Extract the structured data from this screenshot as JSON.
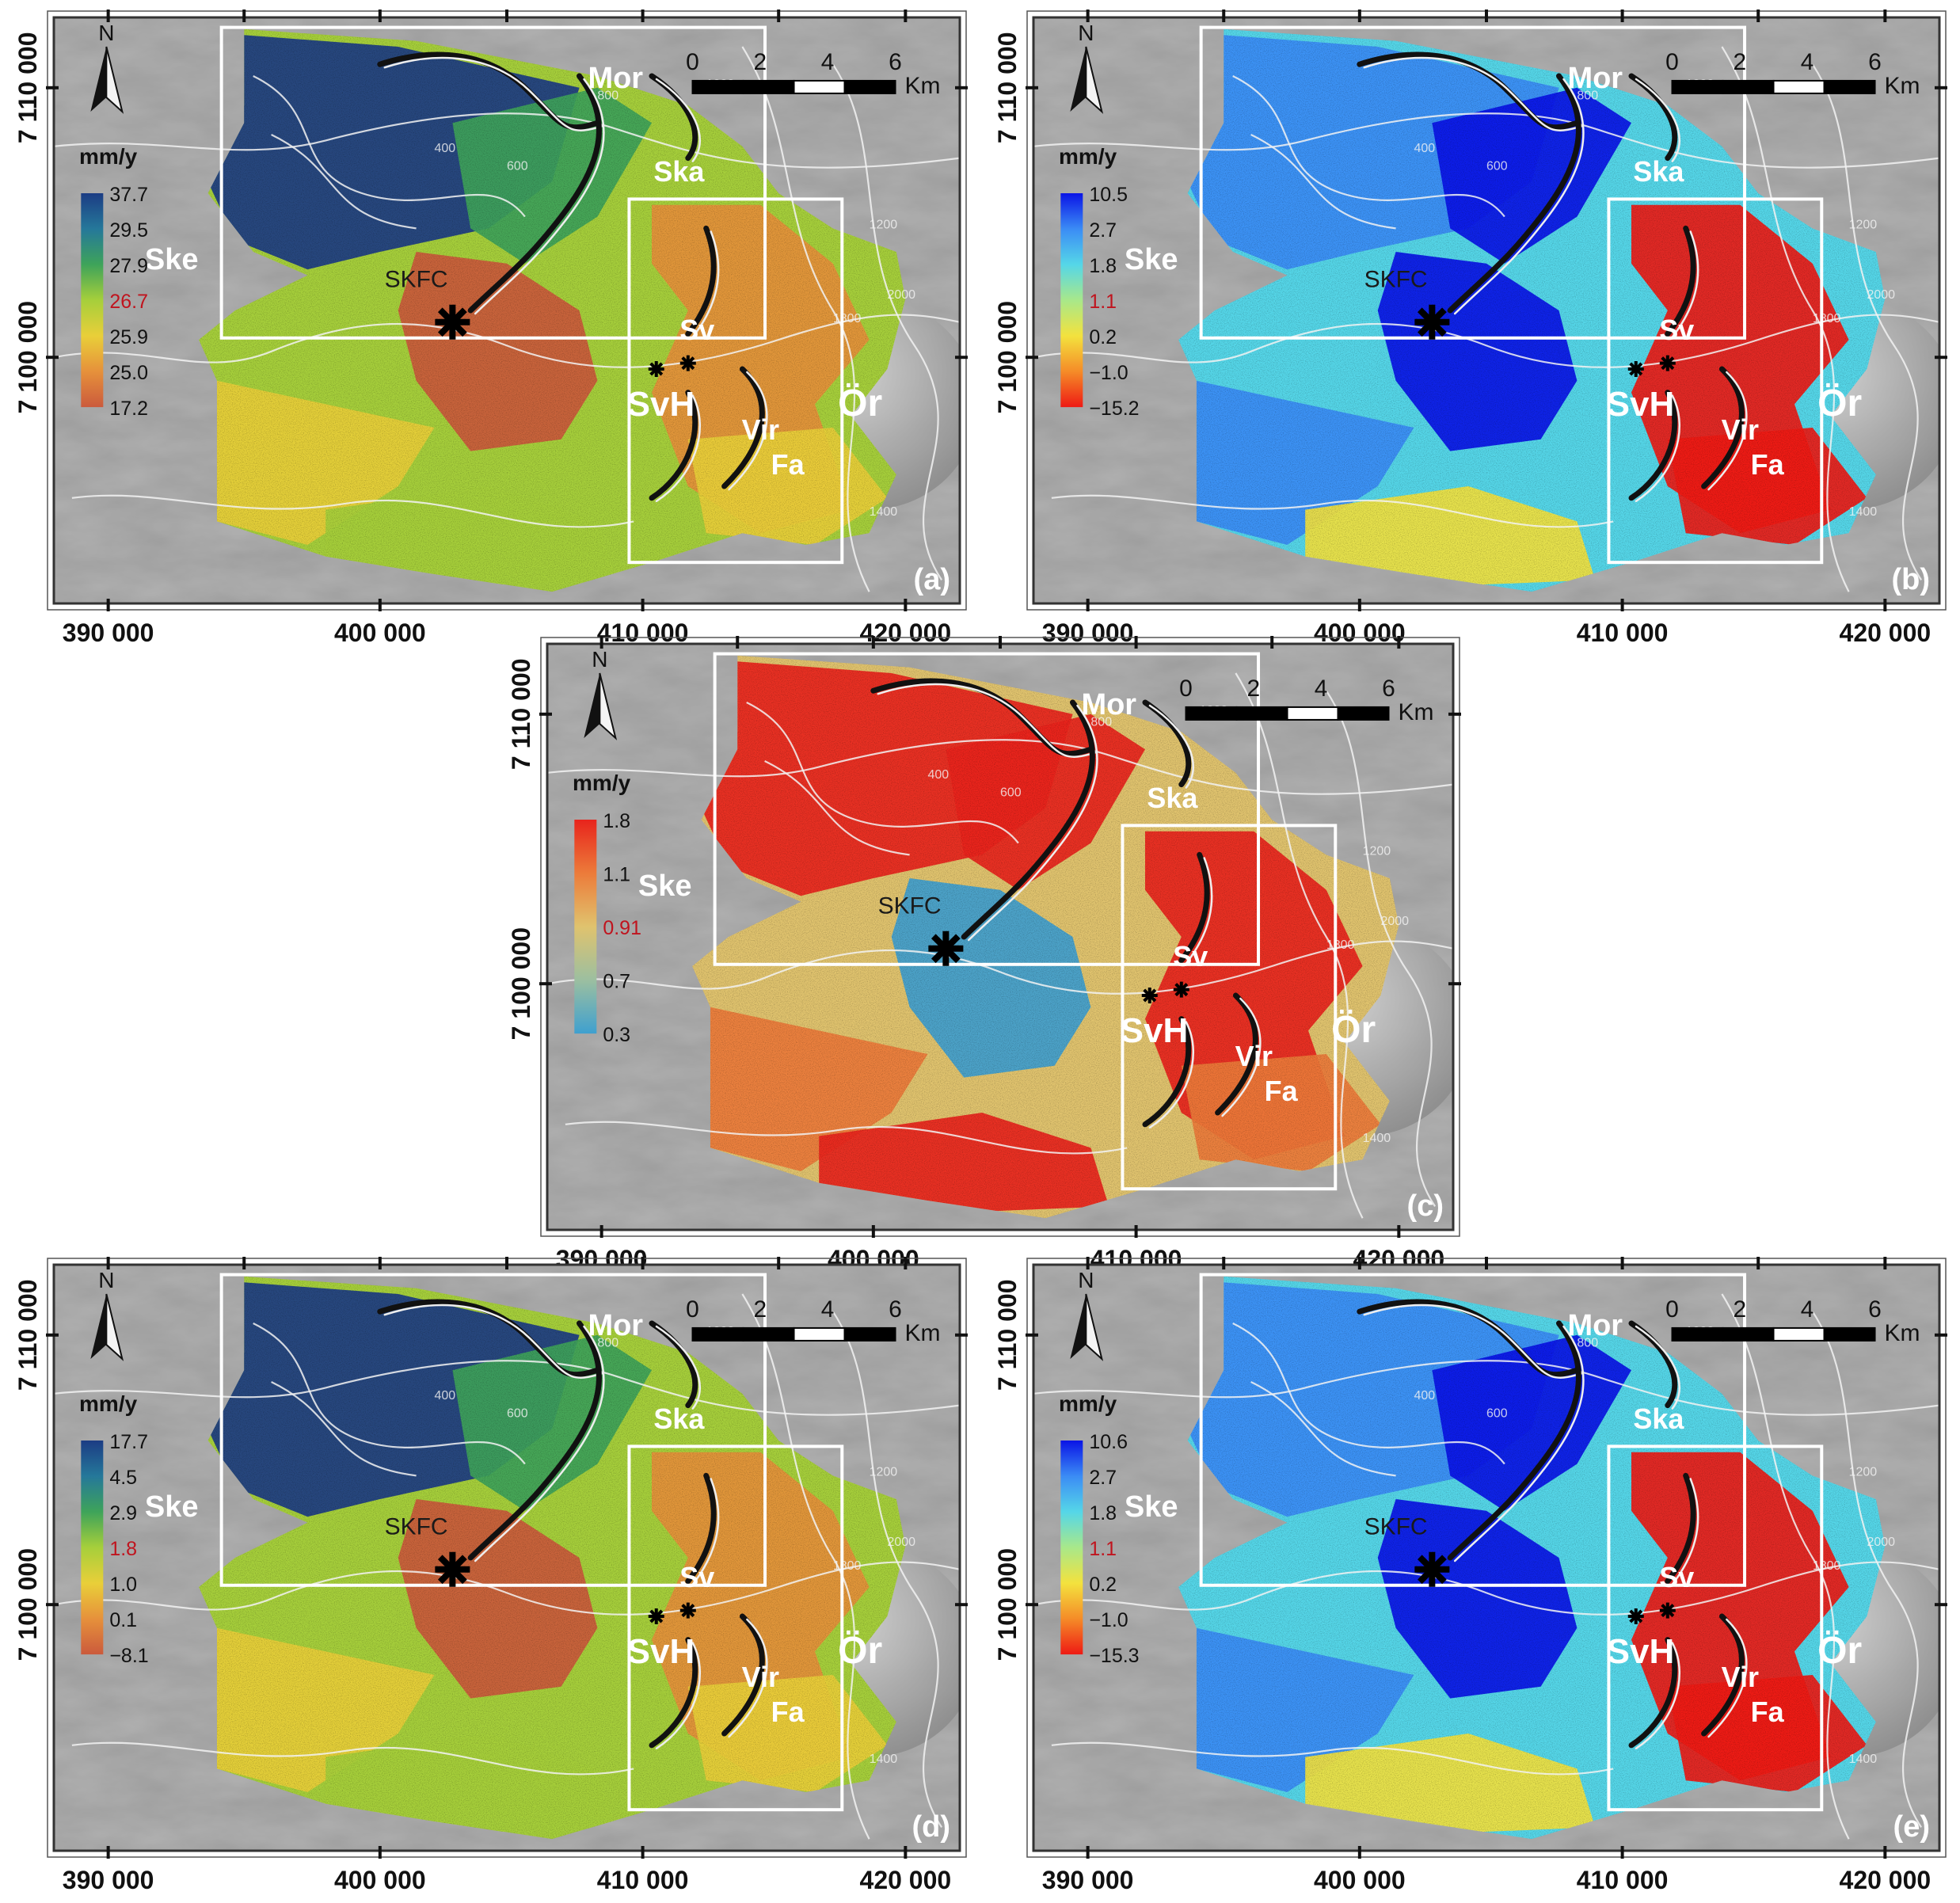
{
  "panels": [
    {
      "id": "a",
      "label": "(a)",
      "unit": "mm/y",
      "scheme": "classic",
      "legend_values": [
        "37.7",
        "29.5",
        "27.9",
        "26.7",
        "25.9",
        "25.0",
        "17.2"
      ],
      "legend_highlight_index": 3,
      "y_ticks": [
        "7 110 000",
        "7 100 000"
      ],
      "x_ticks": [
        "390 000",
        "400 000",
        "410 000",
        "420 000"
      ]
    },
    {
      "id": "b",
      "label": "(b)",
      "unit": "mm/y",
      "scheme": "jet",
      "legend_values": [
        "10.5",
        "2.7",
        "1.8",
        "1.1",
        "0.2",
        "−1.0",
        "−15.2"
      ],
      "legend_highlight_index": 3,
      "y_ticks": [
        "7 110 000",
        "7 100 000"
      ],
      "x_ticks": [
        "390 000",
        "400 000",
        "410 000",
        "420 000"
      ]
    },
    {
      "id": "c",
      "label": "(c)",
      "unit": "mm/y",
      "scheme": "std",
      "legend_values": [
        "1.8",
        "1.1",
        "0.91",
        "0.7",
        "0.3"
      ],
      "legend_highlight_index": 2,
      "y_ticks": [
        "7 110 000",
        "7 100 000"
      ],
      "x_ticks": [
        "390 000",
        "400 000",
        "410 000",
        "420 000"
      ]
    },
    {
      "id": "d",
      "label": "(d)",
      "unit": "mm/y",
      "scheme": "classic",
      "legend_values": [
        "17.7",
        "4.5",
        "2.9",
        "1.8",
        "1.0",
        "0.1",
        "−8.1"
      ],
      "legend_highlight_index": 3,
      "y_ticks": [
        "7 110 000",
        "7 100 000"
      ],
      "x_ticks": [
        "390 000",
        "400 000",
        "410 000",
        "420 000"
      ]
    },
    {
      "id": "e",
      "label": "(e)",
      "unit": "mm/y",
      "scheme": "jet",
      "legend_values": [
        "10.6",
        "2.7",
        "1.8",
        "1.1",
        "0.2",
        "−1.0",
        "−15.3"
      ],
      "legend_highlight_index": 3,
      "y_ticks": [
        "7 110 000",
        "7 100 000"
      ],
      "x_ticks": [
        "390 000",
        "400 000",
        "410 000",
        "420 000"
      ]
    }
  ],
  "common": {
    "north": "N",
    "scalebar_ticks": [
      "0",
      "2",
      "4",
      "6"
    ],
    "scalebar_unit": "Km",
    "place_labels": [
      "Mor",
      "Ska",
      "Ske",
      "SKFC",
      "Sv",
      "SvH",
      "Vir",
      "Fa",
      "Ör"
    ],
    "contour_labels": [
      "400",
      "600",
      "800",
      "1000",
      "1200",
      "1400",
      "1800",
      "2000"
    ]
  },
  "colors": {
    "highlight_text": "#c0141e",
    "frame": "#333333",
    "study_boxes": "#ffffff"
  },
  "color_schemes": {
    "classic": [
      "#1c3c84",
      "#25789a",
      "#3ea35a",
      "#a6cf3b",
      "#e9cf39",
      "#e6913b",
      "#cb5a3c"
    ],
    "jet": [
      "#0a14e6",
      "#3b8cf5",
      "#55d6e8",
      "#a8e88a",
      "#f3e23e",
      "#f58c28",
      "#ee1a14"
    ],
    "std": [
      "#e8241c",
      "#ec7b3a",
      "#e0c36e",
      "#9cbfa0",
      "#3fa0cf"
    ]
  }
}
